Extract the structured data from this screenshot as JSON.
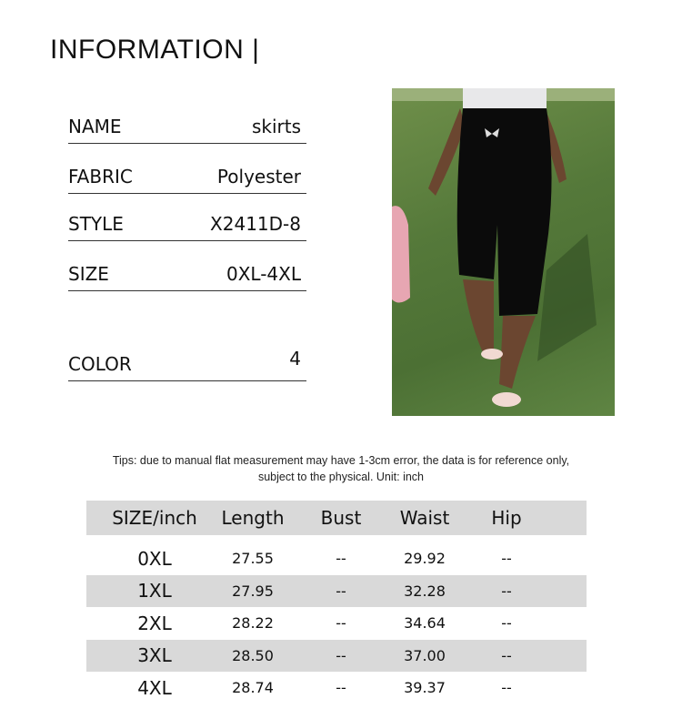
{
  "title": "INFORMATION |",
  "info": [
    {
      "label": "NAME",
      "value": "skirts"
    },
    {
      "label": "FABRIC",
      "value": "Polyester"
    },
    {
      "label": "STYLE",
      "value": "X2411D-8"
    },
    {
      "label": "SIZE",
      "value": "0XL-4XL"
    },
    {
      "label": "COLOR",
      "value": "4"
    }
  ],
  "tips": [
    "Tips: due to manual flat measurement may have 1-3cm error, the data is for reference only,",
    "subject to the physical. Unit: inch"
  ],
  "table": {
    "headers": [
      "SIZE/inch",
      "Length",
      "Bust",
      "Waist",
      "Hip"
    ],
    "rows": [
      [
        "0XL",
        "27.55",
        "--",
        "29.92",
        "--"
      ],
      [
        "1XL",
        "27.95",
        "--",
        "32.28",
        "--"
      ],
      [
        "2XL",
        "28.22",
        "--",
        "34.64",
        "--"
      ],
      [
        "3XL",
        "28.50",
        "--",
        "37.00",
        "--"
      ],
      [
        "4XL",
        "28.74",
        "--",
        "39.37",
        "--"
      ]
    ]
  }
}
